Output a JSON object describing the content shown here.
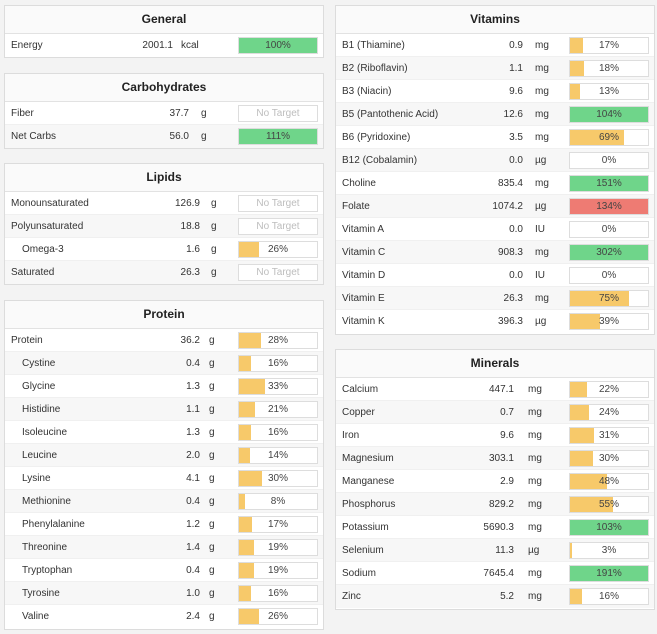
{
  "colors": {
    "green": "#6fd58a",
    "orange": "#f7c96a",
    "red": "#ee7b73"
  },
  "general": {
    "title": "General",
    "rows": [
      {
        "name": "Energy",
        "value": "2001.1",
        "unit": "kcal",
        "pct": 1.0,
        "label": "100%",
        "color": "green"
      }
    ]
  },
  "carbs": {
    "title": "Carbohydrates",
    "rows": [
      {
        "name": "Fiber",
        "value": "37.7",
        "unit": "g",
        "pct": 0,
        "label": "No Target",
        "color": "none"
      },
      {
        "name": "Net Carbs",
        "value": "56.0",
        "unit": "g",
        "pct": 1.0,
        "label": "111%",
        "color": "green"
      }
    ]
  },
  "lipids": {
    "title": "Lipids",
    "rows": [
      {
        "name": "Monounsaturated",
        "value": "126.9",
        "unit": "g",
        "pct": 0,
        "label": "No Target",
        "color": "none"
      },
      {
        "name": "Polyunsaturated",
        "value": "18.8",
        "unit": "g",
        "pct": 0,
        "label": "No Target",
        "color": "none"
      },
      {
        "name": "Omega-3",
        "value": "1.6",
        "unit": "g",
        "pct": 0.26,
        "label": "26%",
        "color": "orange",
        "sub": true
      },
      {
        "name": "Saturated",
        "value": "26.3",
        "unit": "g",
        "pct": 0,
        "label": "No Target",
        "color": "none"
      }
    ]
  },
  "protein": {
    "title": "Protein",
    "rows": [
      {
        "name": "Protein",
        "value": "36.2",
        "unit": "g",
        "pct": 0.28,
        "label": "28%",
        "color": "orange"
      },
      {
        "name": "Cystine",
        "value": "0.4",
        "unit": "g",
        "pct": 0.16,
        "label": "16%",
        "color": "orange",
        "sub": true
      },
      {
        "name": "Glycine",
        "value": "1.3",
        "unit": "g",
        "pct": 0.33,
        "label": "33%",
        "color": "orange",
        "sub": true
      },
      {
        "name": "Histidine",
        "value": "1.1",
        "unit": "g",
        "pct": 0.21,
        "label": "21%",
        "color": "orange",
        "sub": true
      },
      {
        "name": "Isoleucine",
        "value": "1.3",
        "unit": "g",
        "pct": 0.16,
        "label": "16%",
        "color": "orange",
        "sub": true
      },
      {
        "name": "Leucine",
        "value": "2.0",
        "unit": "g",
        "pct": 0.14,
        "label": "14%",
        "color": "orange",
        "sub": true
      },
      {
        "name": "Lysine",
        "value": "4.1",
        "unit": "g",
        "pct": 0.3,
        "label": "30%",
        "color": "orange",
        "sub": true
      },
      {
        "name": "Methionine",
        "value": "0.4",
        "unit": "g",
        "pct": 0.08,
        "label": "8%",
        "color": "orange",
        "sub": true
      },
      {
        "name": "Phenylalanine",
        "value": "1.2",
        "unit": "g",
        "pct": 0.17,
        "label": "17%",
        "color": "orange",
        "sub": true
      },
      {
        "name": "Threonine",
        "value": "1.4",
        "unit": "g",
        "pct": 0.19,
        "label": "19%",
        "color": "orange",
        "sub": true
      },
      {
        "name": "Tryptophan",
        "value": "0.4",
        "unit": "g",
        "pct": 0.19,
        "label": "19%",
        "color": "orange",
        "sub": true
      },
      {
        "name": "Tyrosine",
        "value": "1.0",
        "unit": "g",
        "pct": 0.16,
        "label": "16%",
        "color": "orange",
        "sub": true
      },
      {
        "name": "Valine",
        "value": "2.4",
        "unit": "g",
        "pct": 0.26,
        "label": "26%",
        "color": "orange",
        "sub": true
      }
    ]
  },
  "vitamins": {
    "title": "Vitamins",
    "rows": [
      {
        "name": "B1 (Thiamine)",
        "value": "0.9",
        "unit": "mg",
        "pct": 0.17,
        "label": "17%",
        "color": "orange"
      },
      {
        "name": "B2 (Riboflavin)",
        "value": "1.1",
        "unit": "mg",
        "pct": 0.18,
        "label": "18%",
        "color": "orange"
      },
      {
        "name": "B3 (Niacin)",
        "value": "9.6",
        "unit": "mg",
        "pct": 0.13,
        "label": "13%",
        "color": "orange"
      },
      {
        "name": "B5 (Pantothenic Acid)",
        "value": "12.6",
        "unit": "mg",
        "pct": 1.0,
        "label": "104%",
        "color": "green"
      },
      {
        "name": "B6 (Pyridoxine)",
        "value": "3.5",
        "unit": "mg",
        "pct": 0.69,
        "label": "69%",
        "color": "orange"
      },
      {
        "name": "B12 (Cobalamin)",
        "value": "0.0",
        "unit": "µg",
        "pct": 0,
        "label": "0%",
        "color": "orange"
      },
      {
        "name": "Choline",
        "value": "835.4",
        "unit": "mg",
        "pct": 1.0,
        "label": "151%",
        "color": "green"
      },
      {
        "name": "Folate",
        "value": "1074.2",
        "unit": "µg",
        "pct": 1.0,
        "label": "134%",
        "color": "red"
      },
      {
        "name": "Vitamin A",
        "value": "0.0",
        "unit": "IU",
        "pct": 0,
        "label": "0%",
        "color": "orange"
      },
      {
        "name": "Vitamin C",
        "value": "908.3",
        "unit": "mg",
        "pct": 1.0,
        "label": "302%",
        "color": "green"
      },
      {
        "name": "Vitamin D",
        "value": "0.0",
        "unit": "IU",
        "pct": 0,
        "label": "0%",
        "color": "orange"
      },
      {
        "name": "Vitamin E",
        "value": "26.3",
        "unit": "mg",
        "pct": 0.75,
        "label": "75%",
        "color": "orange"
      },
      {
        "name": "Vitamin K",
        "value": "396.3",
        "unit": "µg",
        "pct": 0.39,
        "label": "39%",
        "color": "orange"
      }
    ]
  },
  "minerals": {
    "title": "Minerals",
    "rows": [
      {
        "name": "Calcium",
        "value": "447.1",
        "unit": "mg",
        "pct": 0.22,
        "label": "22%",
        "color": "orange"
      },
      {
        "name": "Copper",
        "value": "0.7",
        "unit": "mg",
        "pct": 0.24,
        "label": "24%",
        "color": "orange"
      },
      {
        "name": "Iron",
        "value": "9.6",
        "unit": "mg",
        "pct": 0.31,
        "label": "31%",
        "color": "orange"
      },
      {
        "name": "Magnesium",
        "value": "303.1",
        "unit": "mg",
        "pct": 0.3,
        "label": "30%",
        "color": "orange"
      },
      {
        "name": "Manganese",
        "value": "2.9",
        "unit": "mg",
        "pct": 0.48,
        "label": "48%",
        "color": "orange"
      },
      {
        "name": "Phosphorus",
        "value": "829.2",
        "unit": "mg",
        "pct": 0.55,
        "label": "55%",
        "color": "orange"
      },
      {
        "name": "Potassium",
        "value": "5690.3",
        "unit": "mg",
        "pct": 1.0,
        "label": "103%",
        "color": "green"
      },
      {
        "name": "Selenium",
        "value": "11.3",
        "unit": "µg",
        "pct": 0.03,
        "label": "3%",
        "color": "orange"
      },
      {
        "name": "Sodium",
        "value": "7645.4",
        "unit": "mg",
        "pct": 1.0,
        "label": "191%",
        "color": "green"
      },
      {
        "name": "Zinc",
        "value": "5.2",
        "unit": "mg",
        "pct": 0.16,
        "label": "16%",
        "color": "orange"
      }
    ]
  }
}
